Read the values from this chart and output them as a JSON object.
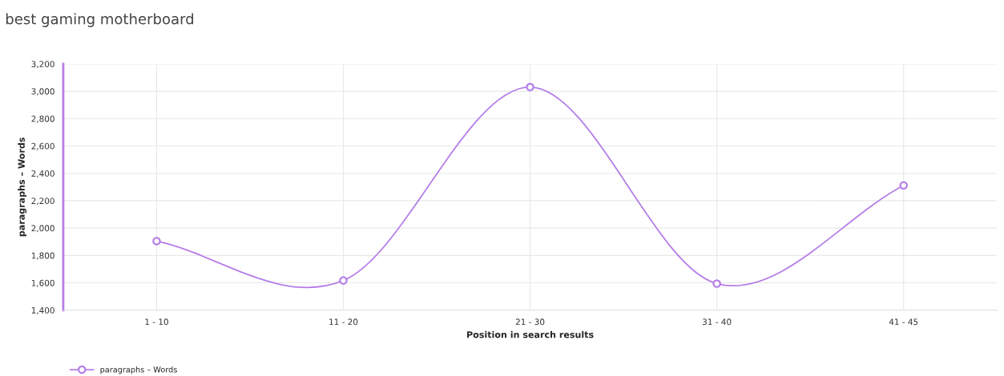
{
  "chart_data": {
    "type": "line",
    "title": "best gaming motherboard",
    "xlabel": "Position in search results",
    "ylabel": "paragraphs – Words",
    "categories": [
      "1 - 10",
      "11 - 20",
      "21 - 30",
      "31 - 40",
      "41 - 45"
    ],
    "series": [
      {
        "name": "paragraphs – Words",
        "color": "#b57ee8",
        "values": [
          1905,
          1617,
          3031,
          1594,
          2312
        ]
      }
    ],
    "ylim": [
      1400,
      3200
    ],
    "yticks": [
      {
        "value": 1400,
        "label": "1,400"
      },
      {
        "value": 1600,
        "label": "1,600"
      },
      {
        "value": 1800,
        "label": "1,800"
      },
      {
        "value": 2000,
        "label": "2,000"
      },
      {
        "value": 2200,
        "label": "2,200"
      },
      {
        "value": 2400,
        "label": "2,400"
      },
      {
        "value": 2600,
        "label": "2,600"
      },
      {
        "value": 2800,
        "label": "2,800"
      },
      {
        "value": 3000,
        "label": "3,000"
      },
      {
        "value": 3200,
        "label": "3,200"
      }
    ],
    "grid": true,
    "legend": "bottom left",
    "marker": "circle",
    "line_style": "solid"
  }
}
